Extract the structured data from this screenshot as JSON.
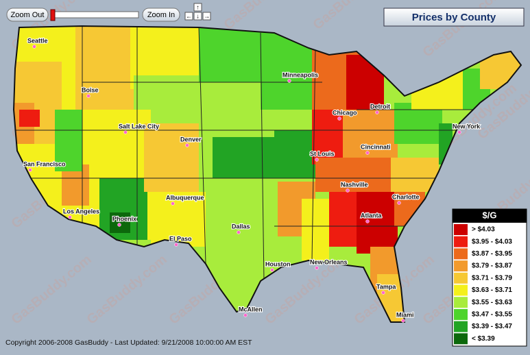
{
  "toolbar": {
    "zoom_out": "Zoom Out",
    "zoom_in": "Zoom In"
  },
  "title": "Prices by County",
  "watermark": "GasBuddy.com",
  "legend": {
    "title": "$/G",
    "items": [
      {
        "label": "> $4.03",
        "color": "#cc0000"
      },
      {
        "label": "$3.95 - $4.03",
        "color": "#ee1c10"
      },
      {
        "label": "$3.87 - $3.95",
        "color": "#ec6a1c"
      },
      {
        "label": "$3.79 - $3.87",
        "color": "#f29a2c"
      },
      {
        "label": "$3.71 - $3.79",
        "color": "#f6c834"
      },
      {
        "label": "$3.63 - $3.71",
        "color": "#f4f01c"
      },
      {
        "label": "$3.55 - $3.63",
        "color": "#a8ec3c"
      },
      {
        "label": "$3.47 - $3.55",
        "color": "#4ed42c"
      },
      {
        "label": "$3.39 - $3.47",
        "color": "#22a424"
      },
      {
        "label": "< $3.39",
        "color": "#0c680c"
      }
    ]
  },
  "cities": [
    "Seattle",
    "Boise",
    "Minneapolis",
    "Chicago",
    "Detroit",
    "New York",
    "Salt Lake City",
    "Denver",
    "San Francisco",
    "St Louis",
    "Cincinnati",
    "Nashville",
    "Charlotte",
    "Albuquerque",
    "Los Angeles",
    "Phoenix",
    "Dallas",
    "Atlanta",
    "El Paso",
    "Houston",
    "New Orleans",
    "Tampa",
    "McAllen",
    "Miami"
  ],
  "copyright": "Copyright 2006-2008 GasBuddy - Last Updated: 9/21/2008 10:00:00 AM EST"
}
